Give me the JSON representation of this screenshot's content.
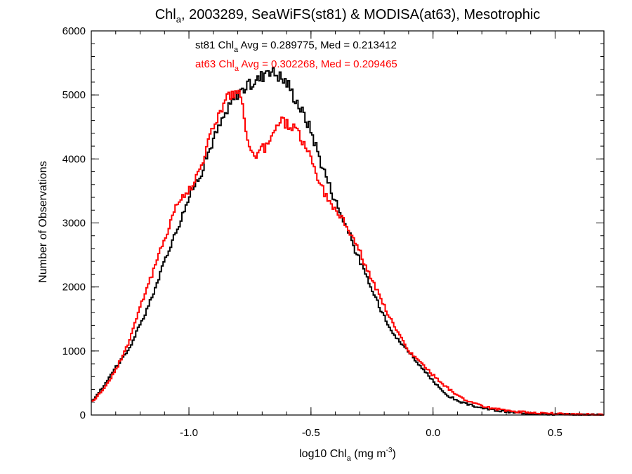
{
  "chart_data": {
    "type": "line",
    "title": {
      "base": "Chl",
      "sub": "a",
      "rest": ", 2003289, SeaWiFS(st81) & MODISA(at63), Mesotrophic"
    },
    "xlabel": {
      "pre": "log10 Chl",
      "sub": "a",
      "mid": " (mg m",
      "sup": "-3",
      "post": ")"
    },
    "ylabel": "Number of Observations",
    "xlim": [
      -1.4,
      0.7
    ],
    "ylim": [
      0,
      6000
    ],
    "xticks": [
      {
        "value": -1.0,
        "label": "-1.0"
      },
      {
        "value": -0.5,
        "label": "-0.5"
      },
      {
        "value": 0.0,
        "label": "0.0"
      },
      {
        "value": 0.5,
        "label": "0.5"
      }
    ],
    "yticks": [
      {
        "value": 0,
        "label": "0"
      },
      {
        "value": 1000,
        "label": "1000"
      },
      {
        "value": 2000,
        "label": "2000"
      },
      {
        "value": 3000,
        "label": "3000"
      },
      {
        "value": 4000,
        "label": "4000"
      },
      {
        "value": 5000,
        "label": "5000"
      },
      {
        "value": 6000,
        "label": "6000"
      }
    ],
    "grid": false,
    "annotations": [
      {
        "pre": "st81 Chl",
        "sub": "a",
        "post": " Avg = 0.289775, Med = 0.213412",
        "color": "#000000"
      },
      {
        "pre": "at63 Chl",
        "sub": "a",
        "post": " Avg = 0.302268, Med = 0.209465",
        "color": "#ff0000"
      }
    ],
    "series": [
      {
        "color": "#000000",
        "x": [
          -1.4,
          -1.35,
          -1.3,
          -1.25,
          -1.2,
          -1.15,
          -1.1,
          -1.05,
          -1.0,
          -0.95,
          -0.9,
          -0.85,
          -0.8,
          -0.75,
          -0.7,
          -0.68,
          -0.65,
          -0.6,
          -0.55,
          -0.5,
          -0.45,
          -0.4,
          -0.35,
          -0.3,
          -0.25,
          -0.2,
          -0.15,
          -0.1,
          -0.05,
          0.0,
          0.05,
          0.1,
          0.15,
          0.2,
          0.25,
          0.3,
          0.35,
          0.4,
          0.45,
          0.5,
          0.55,
          0.6,
          0.65,
          0.7
        ],
        "values": [
          200,
          450,
          750,
          1000,
          1400,
          1850,
          2400,
          2900,
          3400,
          3800,
          4300,
          4700,
          5050,
          5150,
          5300,
          5420,
          5350,
          5200,
          4850,
          4450,
          3850,
          3350,
          2900,
          2400,
          1950,
          1550,
          1200,
          1000,
          750,
          530,
          330,
          220,
          155,
          110,
          75,
          50,
          35,
          25,
          18,
          12,
          8,
          5,
          3,
          2
        ]
      },
      {
        "color": "#ff0000",
        "x": [
          -1.4,
          -1.35,
          -1.3,
          -1.25,
          -1.2,
          -1.15,
          -1.1,
          -1.05,
          -1.0,
          -0.95,
          -0.9,
          -0.85,
          -0.82,
          -0.8,
          -0.78,
          -0.75,
          -0.72,
          -0.7,
          -0.67,
          -0.65,
          -0.62,
          -0.6,
          -0.57,
          -0.55,
          -0.5,
          -0.45,
          -0.4,
          -0.35,
          -0.3,
          -0.25,
          -0.2,
          -0.15,
          -0.1,
          -0.05,
          0.0,
          0.05,
          0.1,
          0.15,
          0.2,
          0.25,
          0.3,
          0.35,
          0.4,
          0.45,
          0.5,
          0.55,
          0.6,
          0.65,
          0.7
        ],
        "values": [
          200,
          400,
          700,
          1100,
          1700,
          2200,
          2750,
          3300,
          3500,
          3900,
          4500,
          4950,
          5000,
          5050,
          4800,
          4100,
          4050,
          4150,
          4200,
          4500,
          4600,
          4550,
          4500,
          4400,
          4000,
          3500,
          3200,
          2950,
          2550,
          2100,
          1700,
          1320,
          1000,
          820,
          620,
          450,
          310,
          200,
          140,
          100,
          70,
          50,
          40,
          30,
          20,
          15,
          10,
          5,
          3
        ]
      }
    ]
  }
}
